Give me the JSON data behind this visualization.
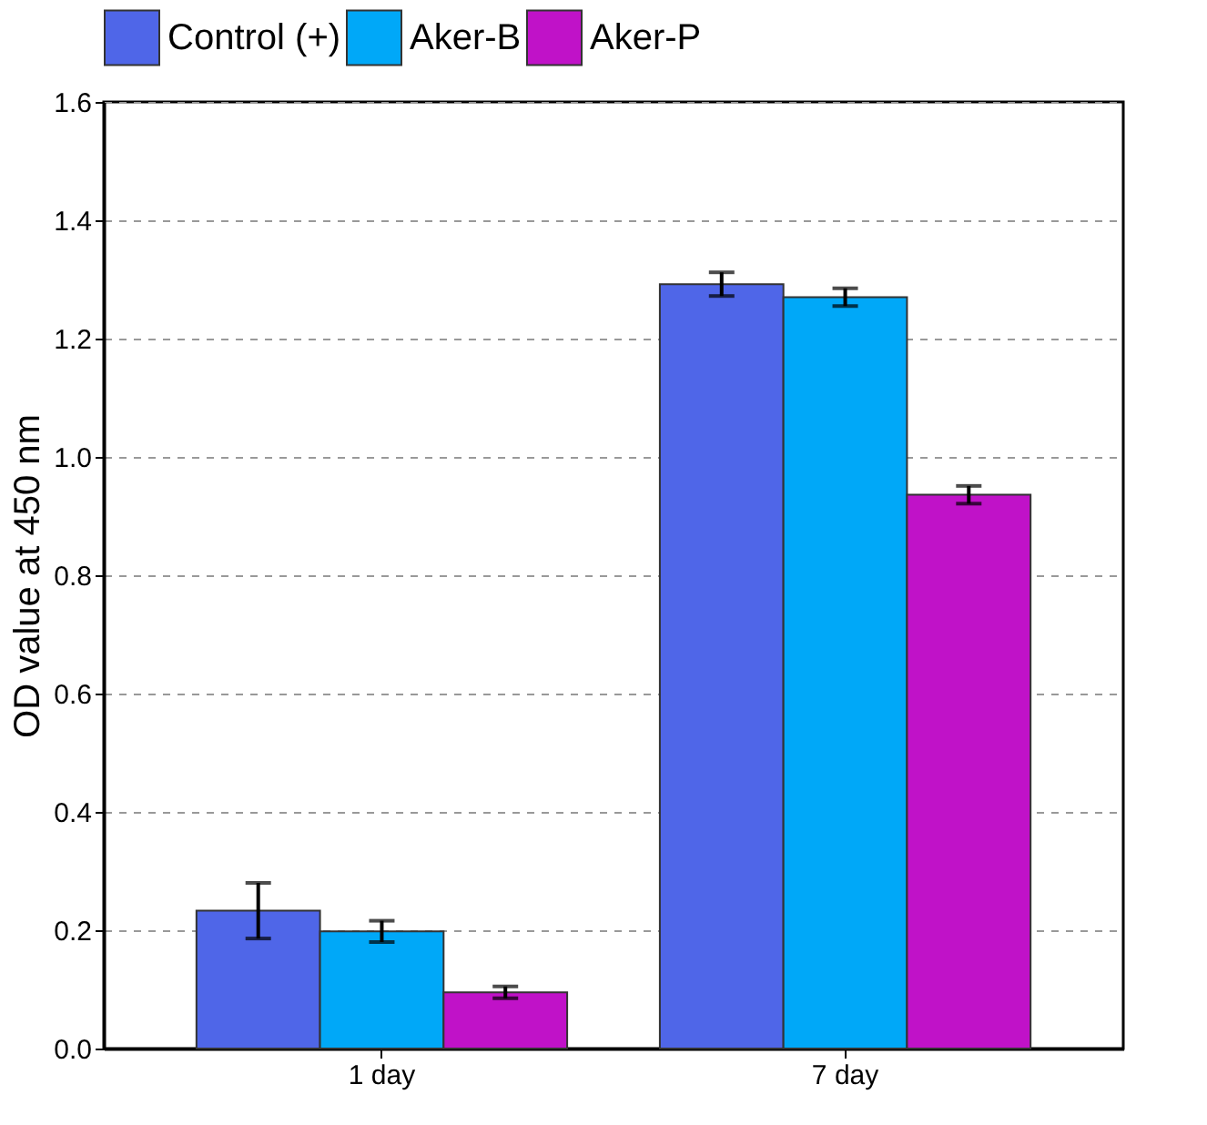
{
  "chart_data": {
    "type": "bar",
    "ylabel": "OD value at 450 nm",
    "categories": [
      "1 day",
      "7 day"
    ],
    "series": [
      {
        "name": "Control (+)",
        "color": "#4f66e8",
        "values": [
          0.233,
          1.292
        ],
        "errors": [
          0.047,
          0.02
        ]
      },
      {
        "name": "Aker-B",
        "color": "#00a8f8",
        "values": [
          0.198,
          1.27
        ],
        "errors": [
          0.018,
          0.015
        ]
      },
      {
        "name": "Aker-P",
        "color": "#c012c8",
        "values": [
          0.095,
          0.936
        ],
        "errors": [
          0.01,
          0.015
        ]
      }
    ],
    "ylim": [
      0,
      1.6
    ],
    "yticks": [
      {
        "value": 0,
        "label": "0.0"
      },
      0.2,
      0.4,
      0.6,
      0.8,
      {
        "value": 1,
        "label": "1.0"
      },
      1.2,
      1.4,
      1.6
    ],
    "grid": "y",
    "legend": "top"
  }
}
